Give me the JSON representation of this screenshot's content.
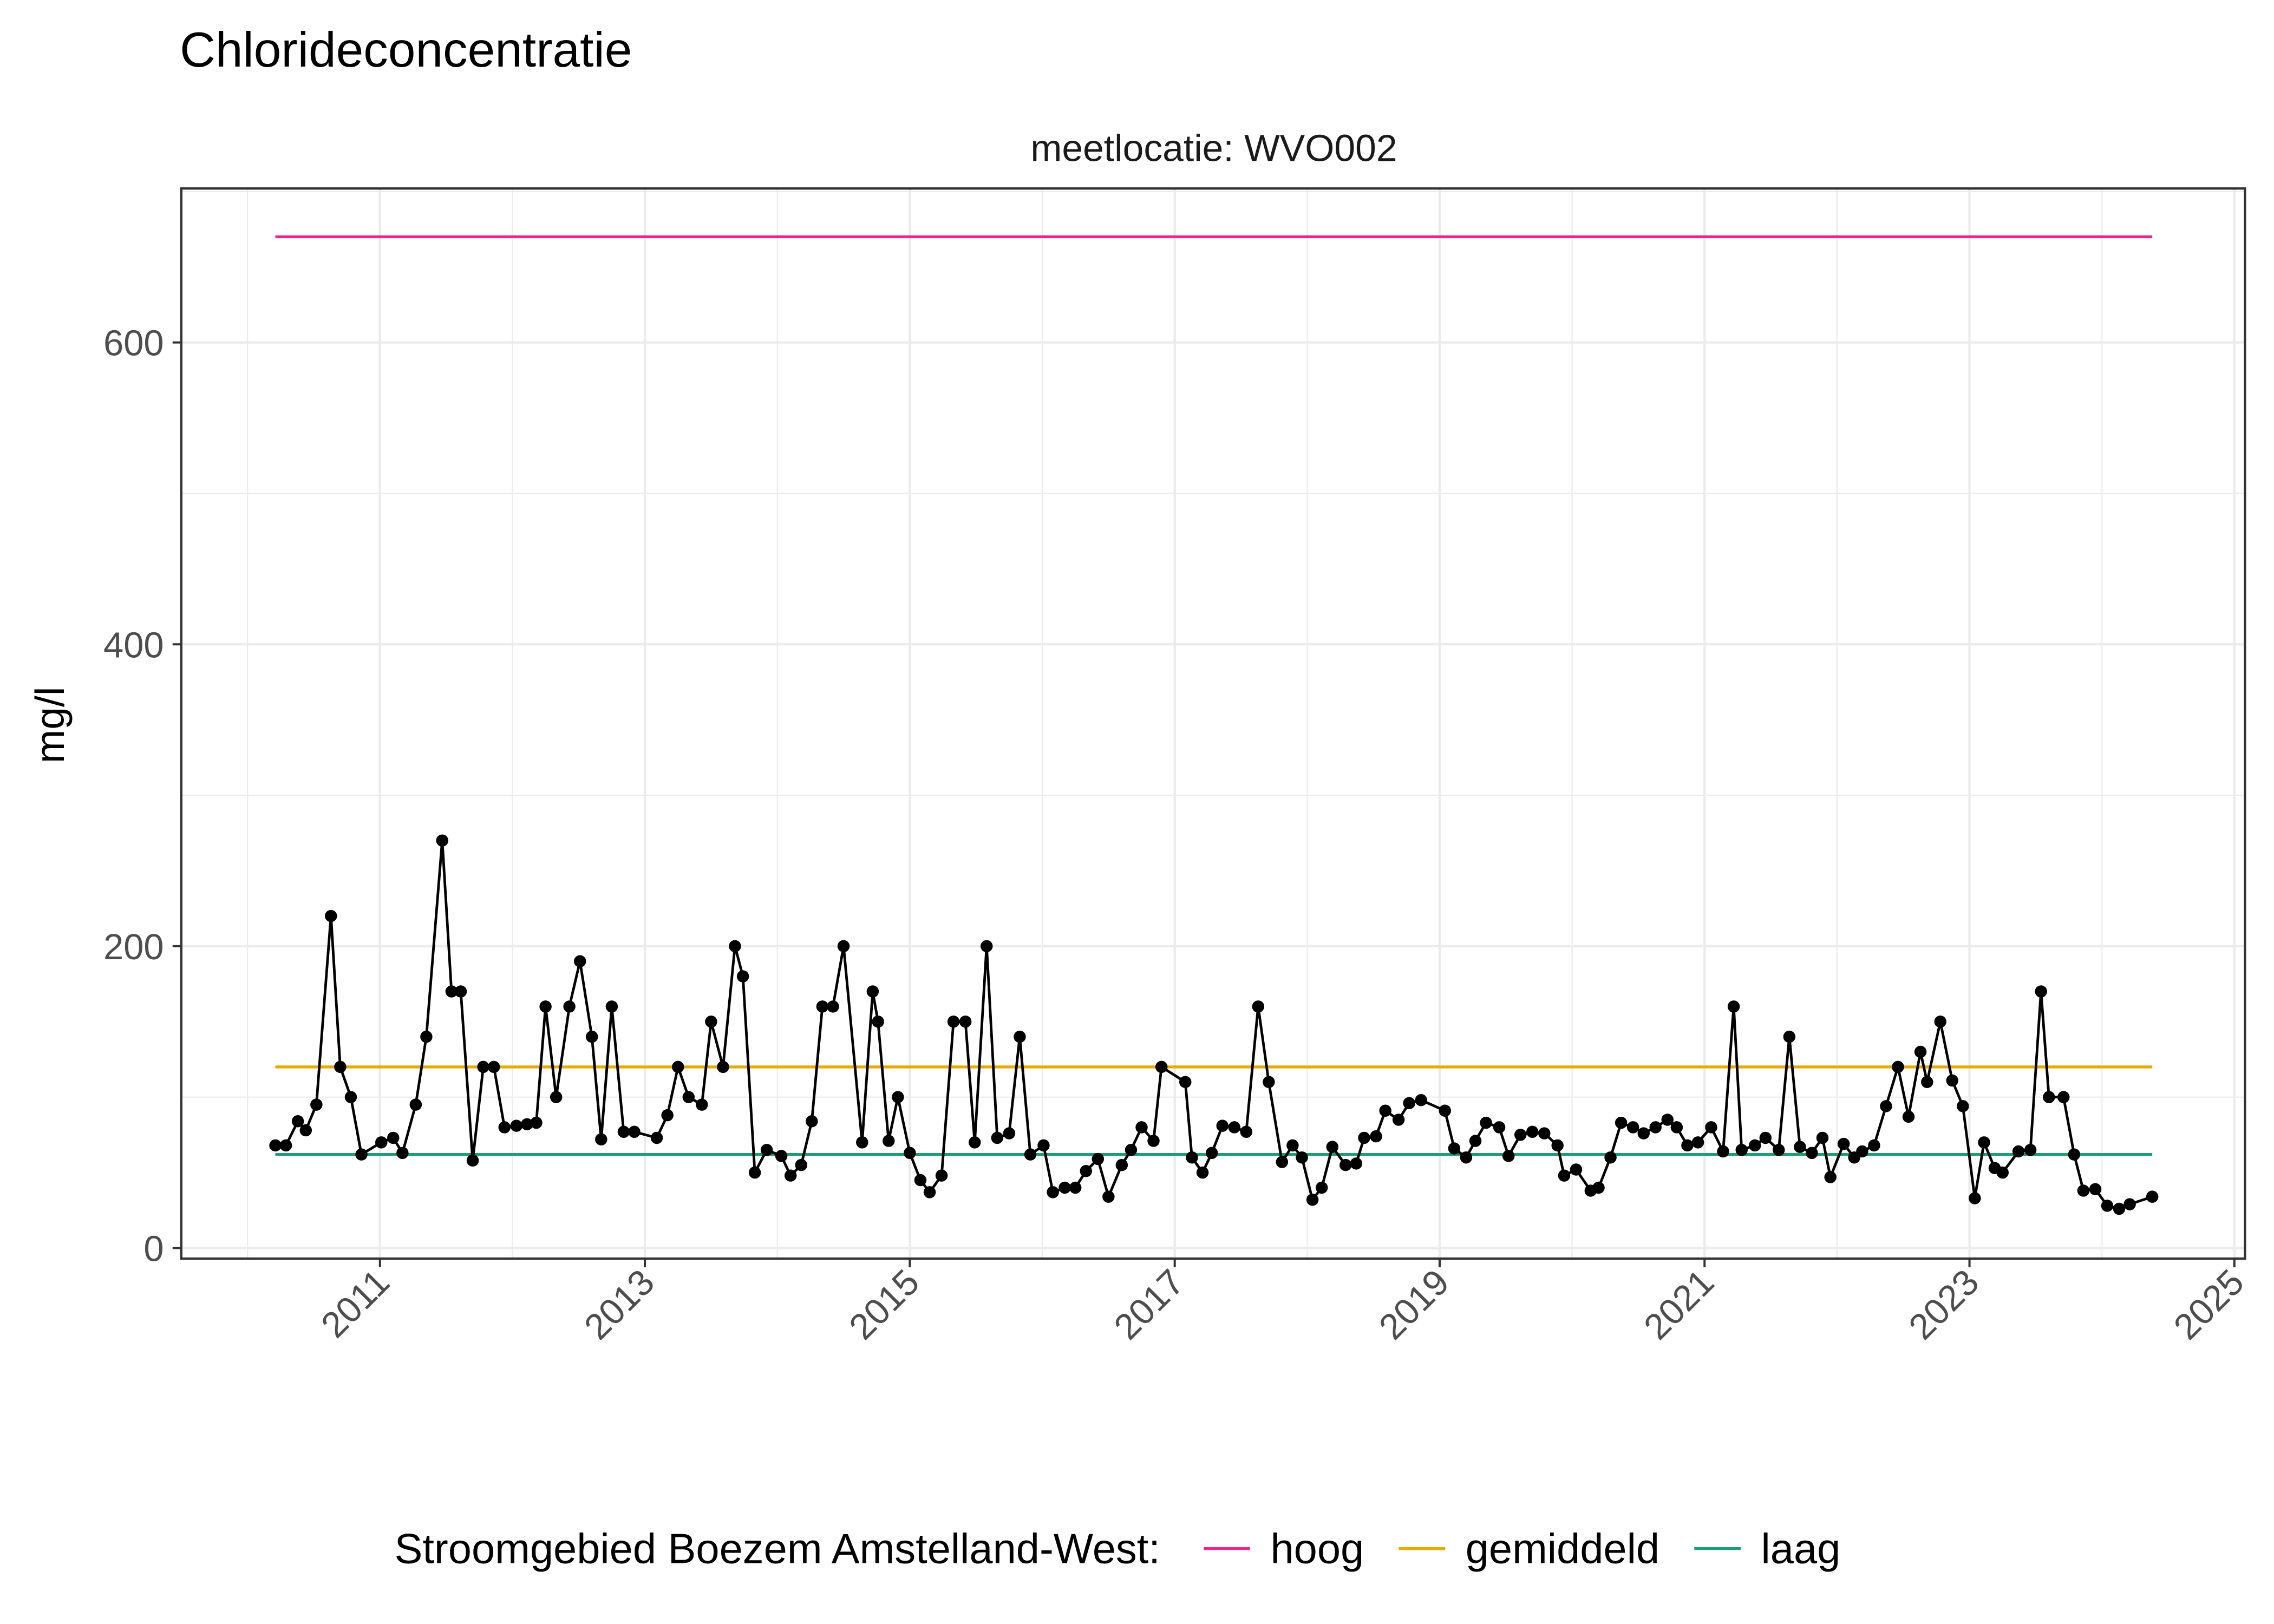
{
  "chart_data": {
    "type": "line",
    "title": "Chlorideconcentratie",
    "subtitle": "meetlocatie: WVO002",
    "y_label": "mg/l",
    "legend_title": "Stroomgebied Boezem Amstelland-West:",
    "legend_position": "bottom",
    "grid": true,
    "xlim": [
      2009.5,
      2025.08
    ],
    "xticks": [
      2011,
      2013,
      2015,
      2017,
      2019,
      2021,
      2023,
      2025
    ],
    "ylim": [
      -7,
      702
    ],
    "yticks": [
      0,
      200,
      400,
      600
    ],
    "points": {
      "color": "#000000",
      "x": [
        2010.21,
        2010.29,
        2010.38,
        2010.44,
        2010.52,
        2010.63,
        2010.7,
        2010.78,
        2010.86,
        2011.01,
        2011.1,
        2011.17,
        2011.27,
        2011.35,
        2011.47,
        2011.54,
        2011.61,
        2011.7,
        2011.78,
        2011.86,
        2011.94,
        2012.03,
        2012.11,
        2012.18,
        2012.25,
        2012.33,
        2012.43,
        2012.51,
        2012.6,
        2012.67,
        2012.75,
        2012.84,
        2012.92,
        2013.09,
        2013.17,
        2013.25,
        2013.33,
        2013.43,
        2013.5,
        2013.59,
        2013.68,
        2013.74,
        2013.83,
        2013.92,
        2014.03,
        2014.1,
        2014.18,
        2014.26,
        2014.34,
        2014.42,
        2014.5,
        2014.64,
        2014.72,
        2014.76,
        2014.84,
        2014.91,
        2015.0,
        2015.08,
        2015.15,
        2015.24,
        2015.33,
        2015.42,
        2015.49,
        2015.58,
        2015.66,
        2015.75,
        2015.83,
        2015.91,
        2016.01,
        2016.08,
        2016.17,
        2016.25,
        2016.33,
        2016.42,
        2016.5,
        2016.6,
        2016.67,
        2016.75,
        2016.84,
        2016.9,
        2017.08,
        2017.13,
        2017.21,
        2017.28,
        2017.36,
        2017.45,
        2017.54,
        2017.63,
        2017.71,
        2017.81,
        2017.89,
        2017.96,
        2018.04,
        2018.11,
        2018.19,
        2018.29,
        2018.37,
        2018.43,
        2018.52,
        2018.59,
        2018.69,
        2018.77,
        2018.86,
        2019.04,
        2019.11,
        2019.2,
        2019.27,
        2019.35,
        2019.45,
        2019.52,
        2019.61,
        2019.7,
        2019.79,
        2019.89,
        2019.94,
        2020.03,
        2020.14,
        2020.2,
        2020.29,
        2020.37,
        2020.46,
        2020.54,
        2020.63,
        2020.72,
        2020.79,
        2020.87,
        2020.95,
        2021.05,
        2021.14,
        2021.22,
        2021.28,
        2021.38,
        2021.46,
        2021.56,
        2021.64,
        2021.72,
        2021.81,
        2021.89,
        2021.95,
        2022.05,
        2022.13,
        2022.19,
        2022.28,
        2022.37,
        2022.46,
        2022.54,
        2022.63,
        2022.68,
        2022.78,
        2022.87,
        2022.95,
        2023.04,
        2023.11,
        2023.19,
        2023.25,
        2023.37,
        2023.46,
        2023.54,
        2023.6,
        2023.71,
        2023.79,
        2023.86,
        2023.95,
        2024.04,
        2024.13,
        2024.21,
        2024.38
      ],
      "values": [
        68,
        68,
        84,
        78,
        95,
        220,
        120,
        100,
        62,
        70,
        73,
        63,
        95,
        140,
        270,
        170,
        170,
        58,
        120,
        120,
        80,
        81,
        82,
        83,
        160,
        100,
        160,
        190,
        140,
        72,
        160,
        77,
        77,
        73,
        88,
        120,
        100,
        95,
        150,
        120,
        200,
        180,
        50,
        65,
        61,
        48,
        55,
        84,
        160,
        160,
        200,
        70,
        170,
        150,
        71,
        100,
        63,
        45,
        37,
        48,
        150,
        150,
        70,
        200,
        73,
        76,
        140,
        62,
        68,
        37,
        40,
        40,
        51,
        59,
        34,
        55,
        65,
        80,
        71,
        120,
        110,
        60,
        50,
        63,
        81,
        80,
        77,
        160,
        110,
        57,
        68,
        60,
        32,
        40,
        67,
        55,
        56,
        73,
        74,
        91,
        85,
        96,
        98,
        91,
        66,
        60,
        71,
        83,
        80,
        61,
        75,
        77,
        76,
        68,
        48,
        52,
        38,
        40,
        60,
        83,
        80,
        76,
        80,
        85,
        80,
        68,
        70,
        80,
        64,
        160,
        65,
        68,
        73,
        65,
        140,
        67,
        63,
        73,
        47,
        69,
        60,
        64,
        68,
        94,
        120,
        87,
        130,
        110,
        150,
        111,
        94,
        33,
        70,
        53,
        50,
        64,
        65,
        170,
        100,
        100,
        62,
        38,
        39,
        28,
        26,
        29,
        34
      ]
    },
    "series": [
      {
        "name": "hoog",
        "color": "#e7298a",
        "x": [
          2010.21,
          2024.38
        ],
        "values": [
          670,
          670
        ]
      },
      {
        "name": "gemiddeld",
        "color": "#e6ab02",
        "x": [
          2010.21,
          2024.38
        ],
        "values": [
          120,
          120
        ]
      },
      {
        "name": "laag",
        "color": "#1b9e77",
        "x": [
          2010.21,
          2024.38
        ],
        "values": [
          62,
          62
        ]
      }
    ]
  }
}
